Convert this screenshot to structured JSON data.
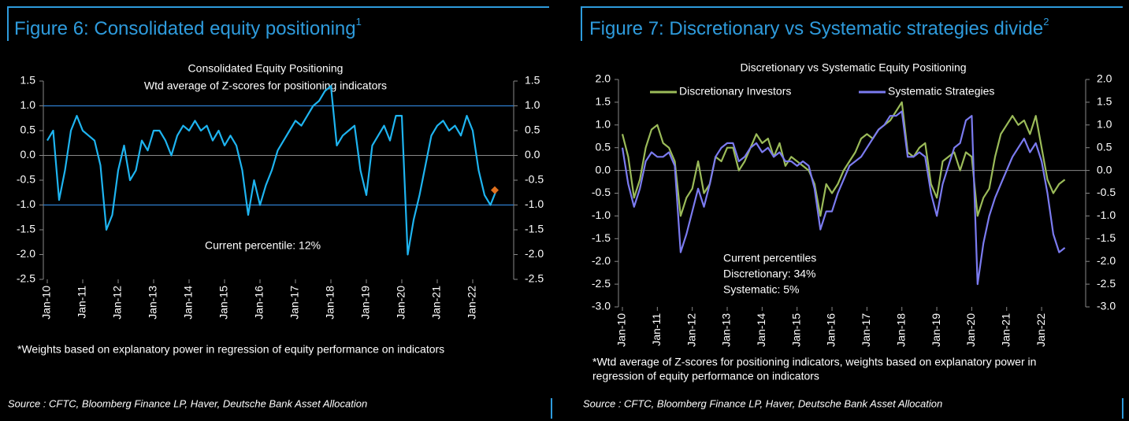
{
  "figures": [
    {
      "heading": "Figure 6: Consolidated equity positioning",
      "heading_sup": "1",
      "footnote": [
        "*Weights based on explanatory power in regression of equity performance on indicators"
      ],
      "source": "Source : CFTC, Bloomberg Finance LP, Haver, Deutsche Bank Asset Allocation"
    },
    {
      "heading": "Figure 7: Discretionary vs Systematic strategies divide",
      "heading_sup": "2",
      "footnote": [
        "*Wtd average of Z-scores for positioning indicators, weights based on explanatory power in",
        "regression of equity performance on indicators"
      ],
      "source": "Source : CFTC, Bloomberg Finance LP, Haver, Deutsche Bank Asset Allocation"
    }
  ],
  "chart_data": [
    {
      "type": "line",
      "title": "Consolidated Equity Positioning",
      "subtitle": "Wtd average of Z-scores for positioning indicators",
      "annotation": [
        "Current percentile: 12%"
      ],
      "categories": [
        "Jan-10",
        null,
        null,
        null,
        null,
        null,
        "Jan-11",
        null,
        null,
        null,
        null,
        null,
        "Jan-12",
        null,
        null,
        null,
        null,
        null,
        "Jan-13",
        null,
        null,
        null,
        null,
        null,
        "Jan-14",
        null,
        null,
        null,
        null,
        null,
        "Jan-15",
        null,
        null,
        null,
        null,
        null,
        "Jan-16",
        null,
        null,
        null,
        null,
        null,
        "Jan-17",
        null,
        null,
        null,
        null,
        null,
        "Jan-18",
        null,
        null,
        null,
        null,
        null,
        "Jan-19",
        null,
        null,
        null,
        null,
        null,
        "Jan-20",
        null,
        null,
        null,
        null,
        null,
        "Jan-21",
        null,
        null,
        null,
        null,
        null,
        "Jan-22",
        null,
        null,
        null,
        null
      ],
      "series": [
        {
          "color": "#1eb4f0",
          "values": [
            0.3,
            0.5,
            -0.9,
            -0.3,
            0.5,
            0.8,
            0.5,
            0.4,
            0.3,
            -0.2,
            -1.5,
            -1.2,
            -0.3,
            0.2,
            -0.5,
            -0.3,
            0.3,
            0.1,
            0.5,
            0.5,
            0.3,
            0.0,
            0.4,
            0.6,
            0.5,
            0.7,
            0.5,
            0.6,
            0.3,
            0.5,
            0.2,
            0.4,
            0.2,
            -0.3,
            -1.2,
            -0.5,
            -1.0,
            -0.6,
            -0.3,
            0.1,
            0.3,
            0.5,
            0.7,
            0.6,
            0.8,
            1.0,
            1.1,
            1.3,
            1.4,
            0.2,
            0.4,
            0.5,
            0.6,
            -0.3,
            -0.8,
            0.2,
            0.4,
            0.6,
            0.3,
            0.8,
            0.8,
            -2.0,
            -1.3,
            -0.8,
            -0.2,
            0.4,
            0.6,
            0.7,
            0.5,
            0.6,
            0.4,
            0.8,
            0.5,
            -0.3,
            -0.8,
            -1.0,
            -0.7
          ]
        }
      ],
      "latest_marker": {
        "value": -0.7,
        "color": "#e0701e"
      },
      "hlines": [
        1,
        -1
      ],
      "hline_color": "#2e7fd0",
      "ylim": [
        -2.5,
        1.5
      ],
      "yticks": [
        1.5,
        {
          "value": 1,
          "label": "1.0"
        },
        0.5,
        {
          "value": 0,
          "label": "0.0"
        },
        -0.5,
        {
          "value": -1,
          "label": "-1.0"
        },
        -1.5,
        {
          "value": -2,
          "label": "-2.0"
        },
        -2.5
      ],
      "y2lim": [
        -2.5,
        1.5
      ],
      "y2ticks": [
        1.5,
        {
          "value": 1,
          "label": "1.0"
        },
        0.5,
        {
          "value": 0,
          "label": "0.0"
        },
        -0.5,
        {
          "value": -1,
          "label": "-1.0"
        },
        -1.5,
        {
          "value": -2,
          "label": "-2.0"
        },
        -2.5
      ]
    },
    {
      "type": "line",
      "title": "Discretionary  vs Systematic Equity Positioning",
      "annotation": [
        "Current percentiles",
        "Discretionary: 34%",
        "Systematic: 5%"
      ],
      "categories": [
        "Jan-10",
        null,
        null,
        null,
        null,
        null,
        "Jan-11",
        null,
        null,
        null,
        null,
        null,
        "Jan-12",
        null,
        null,
        null,
        null,
        null,
        "Jan-13",
        null,
        null,
        null,
        null,
        null,
        "Jan-14",
        null,
        null,
        null,
        null,
        null,
        "Jan-15",
        null,
        null,
        null,
        null,
        null,
        "Jan-16",
        null,
        null,
        null,
        null,
        null,
        "Jan-17",
        null,
        null,
        null,
        null,
        null,
        "Jan-18",
        null,
        null,
        null,
        null,
        null,
        "Jan-19",
        null,
        null,
        null,
        null,
        null,
        "Jan-20",
        null,
        null,
        null,
        null,
        null,
        "Jan-21",
        null,
        null,
        null,
        null,
        null,
        "Jan-22",
        null,
        null,
        null,
        null
      ],
      "series": [
        {
          "name": "Discretionary Investors",
          "color": "#9bbb59",
          "values": [
            0.8,
            0.3,
            -0.6,
            -0.2,
            0.5,
            0.9,
            1.0,
            0.6,
            0.5,
            0.2,
            -1.0,
            -0.6,
            -0.4,
            0.2,
            -0.5,
            -0.3,
            0.3,
            0.2,
            0.5,
            0.5,
            0.0,
            0.2,
            0.5,
            0.8,
            0.6,
            0.7,
            0.3,
            0.6,
            0.1,
            0.3,
            0.2,
            0.1,
            0.0,
            -0.3,
            -1.0,
            -0.3,
            -0.5,
            -0.3,
            0.0,
            0.2,
            0.4,
            0.7,
            0.8,
            0.7,
            0.9,
            1.0,
            1.1,
            1.3,
            1.5,
            0.4,
            0.3,
            0.5,
            0.6,
            -0.3,
            -0.6,
            0.2,
            0.3,
            0.4,
            0.0,
            0.4,
            0.3,
            -1.0,
            -0.6,
            -0.4,
            0.3,
            0.8,
            1.0,
            1.2,
            1.0,
            1.1,
            0.8,
            1.2,
            0.5,
            -0.2,
            -0.5,
            -0.3,
            -0.2
          ]
        },
        {
          "name": "Systematic Strategies",
          "color": "#7b7bf0",
          "values": [
            0.5,
            -0.3,
            -0.8,
            -0.4,
            0.2,
            0.4,
            0.3,
            0.3,
            0.4,
            0.1,
            -1.8,
            -1.4,
            -0.9,
            -0.4,
            -0.8,
            -0.3,
            0.3,
            0.5,
            0.6,
            0.6,
            0.2,
            0.3,
            0.5,
            0.6,
            0.4,
            0.5,
            0.3,
            0.4,
            0.2,
            0.2,
            0.1,
            0.2,
            0.1,
            -0.4,
            -1.3,
            -0.9,
            -0.9,
            -0.5,
            -0.2,
            0.1,
            0.2,
            0.3,
            0.5,
            0.7,
            0.9,
            1.0,
            1.2,
            1.2,
            1.3,
            0.3,
            0.3,
            0.4,
            0.3,
            -0.5,
            -1.0,
            -0.3,
            0.1,
            0.5,
            0.6,
            1.1,
            1.2,
            -2.5,
            -1.6,
            -1.0,
            -0.6,
            -0.3,
            0.0,
            0.3,
            0.5,
            0.7,
            0.4,
            0.6,
            0.2,
            -0.5,
            -1.4,
            -1.8,
            -1.7
          ]
        }
      ],
      "ylim": [
        -3,
        2
      ],
      "yticks": [
        {
          "value": 2,
          "label": "2.0"
        },
        1.5,
        {
          "value": 1,
          "label": "1.0"
        },
        0.5,
        {
          "value": 0,
          "label": "0.0"
        },
        -0.5,
        {
          "value": -1,
          "label": "-1.0"
        },
        -1.5,
        {
          "value": -2,
          "label": "-2.0"
        },
        -2.5,
        {
          "value": -3,
          "label": "-3.0"
        }
      ],
      "y2lim": [
        -3,
        2
      ],
      "y2ticks": [
        {
          "value": 2,
          "label": "2.0"
        },
        1.5,
        {
          "value": 1,
          "label": "1.0"
        },
        0.5,
        {
          "value": 0,
          "label": "0.0"
        },
        -0.5,
        {
          "value": -1,
          "label": "-1.0"
        },
        -1.5,
        {
          "value": -2,
          "label": "-2.0"
        },
        -2.5,
        {
          "value": -3,
          "label": "-3.0"
        }
      ]
    }
  ]
}
